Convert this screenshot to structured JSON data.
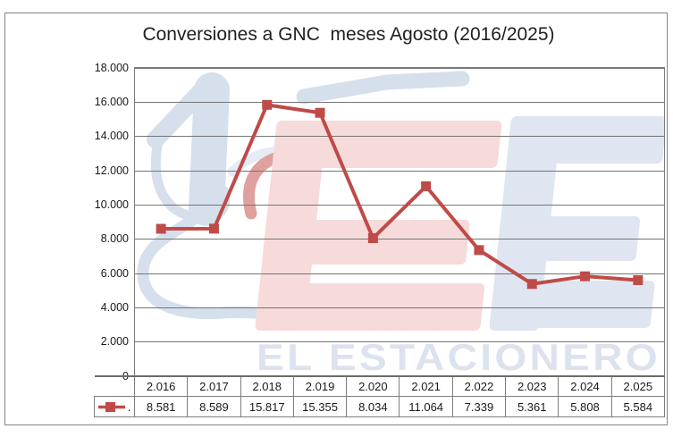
{
  "chart_data": {
    "type": "line",
    "title": "Conversiones a GNC  meses Agosto (2016/2025)",
    "categories": [
      "2.016",
      "2.017",
      "2.018",
      "2.019",
      "2.020",
      "2.021",
      "2.022",
      "2.023",
      "2.024",
      "2.025"
    ],
    "series": [
      {
        "name": ".",
        "values": [
          8581,
          8589,
          15817,
          15355,
          8034,
          11064,
          7339,
          5361,
          5808,
          5584
        ],
        "value_labels": [
          "8.581",
          "8.589",
          "15.817",
          "15.355",
          "8.034",
          "11.064",
          "7.339",
          "5.361",
          "5.808",
          "5.584"
        ],
        "color": "#BF4B48",
        "marker": "square"
      }
    ],
    "ylim": [
      0,
      18000
    ],
    "y_tick_step": 2000,
    "y_tick_labels": [
      "0",
      "2.000",
      "4.000",
      "6.000",
      "8.000",
      "10.000",
      "12.000",
      "14.000",
      "16.000",
      "18.000"
    ],
    "xlabel": "",
    "ylabel": "",
    "grid": "horizontal",
    "legend_position": "bottom-table-left",
    "gridline_color": "#757575",
    "axis_color": "#7c7c7c",
    "table_border_color": "#7e7e7e"
  },
  "watermark": {
    "text": "EL ESTACIONERO",
    "letters": "EE",
    "icon": "fuel-nozzle-icon",
    "blue": "#dfe6f1",
    "nozzle_blue": "#d6dfec",
    "pink": "#f6dbda",
    "red_accent": "#dfa09e",
    "text_blue": "#dce3ef"
  }
}
